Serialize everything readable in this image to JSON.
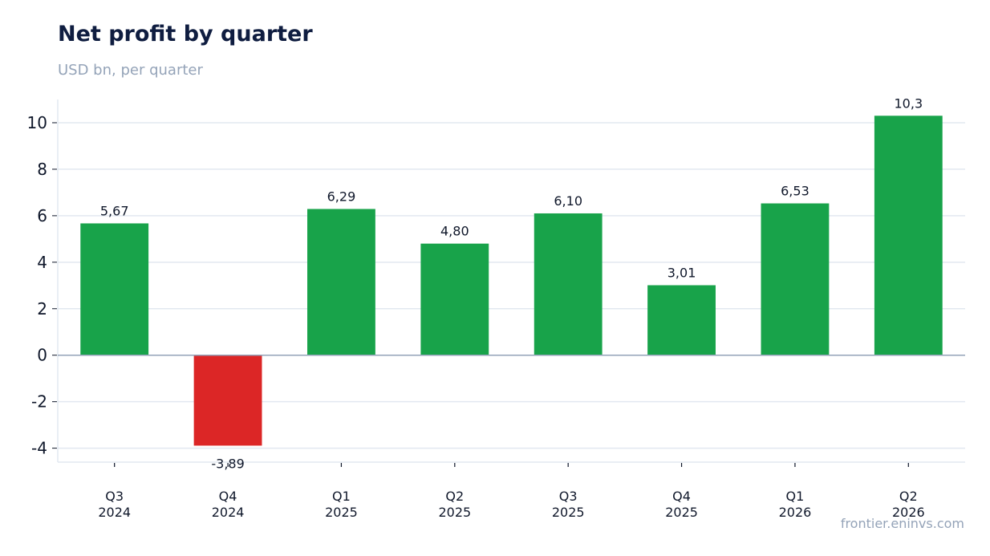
{
  "header": {
    "title": "Net profit by quarter",
    "subtitle": "USD bn, per quarter"
  },
  "footer": {
    "source": "frontier.eninvs.com"
  },
  "chart_data": {
    "type": "bar",
    "title": "Net profit by quarter",
    "subtitle": "USD bn, per quarter",
    "xlabel": "",
    "ylabel": "",
    "categories": [
      [
        "Q3",
        "2024"
      ],
      [
        "Q4",
        "2024"
      ],
      [
        "Q1",
        "2025"
      ],
      [
        "Q2",
        "2025"
      ],
      [
        "Q3",
        "2025"
      ],
      [
        "Q4",
        "2025"
      ],
      [
        "Q1",
        "2026"
      ],
      [
        "Q2",
        "2026"
      ]
    ],
    "values": [
      5.67,
      -3.89,
      6.29,
      4.8,
      6.1,
      3.01,
      6.53,
      10.3
    ],
    "data_labels": [
      "5,67",
      "-3,89",
      "6,29",
      "4,80",
      "6,10",
      "3,01",
      "6,53",
      "10,3"
    ],
    "ylim": [
      -4.6,
      11
    ],
    "yticks": [
      -4,
      -2,
      0,
      2,
      4,
      6,
      8,
      10
    ],
    "ytick_labels": [
      "-4",
      "-2",
      "0",
      "2",
      "4",
      "6",
      "8",
      "10"
    ],
    "grid": true,
    "colors": {
      "positive": "#18a34a",
      "negative": "#dc2626",
      "grid": "#e2e8f0",
      "zero_line": "#94a3b8"
    }
  }
}
